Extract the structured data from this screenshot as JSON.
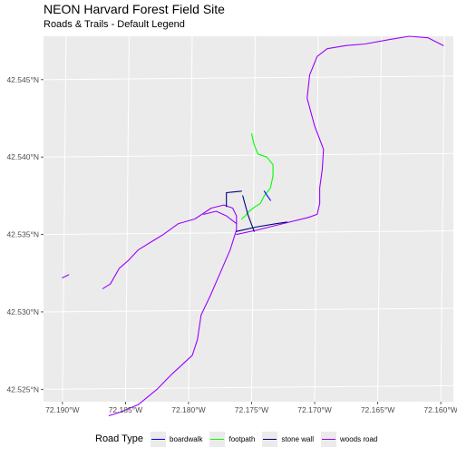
{
  "title": "NEON Harvard Forest Field Site",
  "subtitle": "Roads & Trails - Default Legend",
  "chart_data": {
    "type": "map",
    "x_ticks": [
      "72.190°W",
      "72.185°W",
      "72.180°W",
      "72.175°W",
      "72.170°W",
      "72.165°W",
      "72.160°W"
    ],
    "x_tick_values": [
      -72.19,
      -72.185,
      -72.18,
      -72.175,
      -72.17,
      -72.165,
      -72.16
    ],
    "y_ticks": [
      "42.525°N",
      "42.530°N",
      "42.535°N",
      "42.540°N",
      "42.545°N"
    ],
    "y_tick_values": [
      42.525,
      42.53,
      42.535,
      42.54,
      42.545
    ],
    "xlim": [
      -72.1915,
      -72.159
    ],
    "ylim": [
      42.5242,
      42.5478
    ],
    "legend": {
      "title": "Road Type",
      "placement": "bottom",
      "entries": [
        {
          "label": "boardwalk",
          "color": "#0000ff"
        },
        {
          "label": "footpath",
          "color": "#00ff00"
        },
        {
          "label": "stone wall",
          "color": "#000080"
        },
        {
          "label": "woods road",
          "color": "#9a00ff"
        }
      ]
    },
    "series": [
      {
        "name": "woods road",
        "color": "#9a00ff",
        "lines": [
          [
            [
              -72.19,
              42.5322
            ],
            [
              -72.1895,
              42.5324
            ]
          ],
          [
            [
              -72.1868,
              42.5315
            ],
            [
              -72.1862,
              42.5318
            ],
            [
              -72.1855,
              42.5328
            ],
            [
              -72.1848,
              42.5333
            ],
            [
              -72.184,
              42.534
            ],
            [
              -72.183,
              42.5345
            ],
            [
              -72.182,
              42.535
            ],
            [
              -72.1808,
              42.5357
            ],
            [
              -72.1795,
              42.536
            ],
            [
              -72.1782,
              42.5367
            ],
            [
              -72.1772,
              42.5369
            ],
            [
              -72.1765,
              42.5367
            ],
            [
              -72.1762,
              42.5362
            ],
            [
              -72.1762,
              42.5353
            ],
            [
              -72.1767,
              42.534
            ],
            [
              -72.1775,
              42.5325
            ],
            [
              -72.1783,
              42.531
            ],
            [
              -72.179,
              42.5298
            ],
            [
              -72.1793,
              42.5282
            ],
            [
              -72.1797,
              42.5272
            ],
            [
              -72.1813,
              42.526
            ],
            [
              -72.1825,
              42.525
            ],
            [
              -72.184,
              42.524
            ],
            [
              -72.1855,
              42.5235
            ],
            [
              -72.1863,
              42.5233
            ]
          ],
          [
            [
              -72.1788,
              42.5363
            ],
            [
              -72.1778,
              42.5365
            ],
            [
              -72.177,
              42.5362
            ],
            [
              -72.1762,
              42.5357
            ]
          ],
          [
            [
              -72.1762,
              42.535
            ],
            [
              -72.1745,
              42.5353
            ],
            [
              -72.1725,
              42.5357
            ],
            [
              -72.1705,
              42.5361
            ],
            [
              -72.1698,
              42.5363
            ],
            [
              -72.1696,
              42.537
            ],
            [
              -72.1696,
              42.538
            ],
            [
              -72.1694,
              42.5392
            ],
            [
              -72.1693,
              42.5405
            ],
            [
              -72.17,
              42.542
            ],
            [
              -72.1706,
              42.5438
            ],
            [
              -72.1704,
              42.5453
            ],
            [
              -72.1698,
              42.5465
            ],
            [
              -72.169,
              42.547
            ],
            [
              -72.1675,
              42.5472
            ],
            [
              -72.166,
              42.5473
            ],
            [
              -72.164,
              42.5476
            ],
            [
              -72.1625,
              42.5478
            ],
            [
              -72.161,
              42.5477
            ],
            [
              -72.1598,
              42.5472
            ]
          ]
        ]
      },
      {
        "name": "footpath",
        "color": "#00ff00",
        "lines": [
          [
            [
              -72.175,
              42.5415
            ],
            [
              -72.1748,
              42.5408
            ],
            [
              -72.1745,
              42.5402
            ],
            [
              -72.1738,
              42.54
            ],
            [
              -72.1733,
              42.5395
            ],
            [
              -72.1733,
              42.5388
            ],
            [
              -72.1735,
              42.538
            ],
            [
              -72.174,
              42.5375
            ],
            [
              -72.1743,
              42.537
            ],
            [
              -72.1747,
              42.5368
            ],
            [
              -72.1752,
              42.5365
            ],
            [
              -72.1755,
              42.5362
            ],
            [
              -72.1758,
              42.536
            ]
          ]
        ]
      },
      {
        "name": "stone wall",
        "color": "#000080",
        "lines": [
          [
            [
              -72.177,
              42.5368
            ],
            [
              -72.177,
              42.5377
            ],
            [
              -72.1758,
              42.5378
            ]
          ],
          [
            [
              -72.1757,
              42.5375
            ],
            [
              -72.1753,
              42.5363
            ],
            [
              -72.1748,
              42.5352
            ]
          ],
          [
            [
              -72.1762,
              42.5352
            ],
            [
              -72.1745,
              42.5355
            ],
            [
              -72.173,
              42.5357
            ],
            [
              -72.1722,
              42.5358
            ]
          ]
        ]
      },
      {
        "name": "boardwalk",
        "color": "#0000ff",
        "lines": [
          [
            [
              -72.174,
              42.5378
            ],
            [
              -72.1735,
              42.5372
            ]
          ]
        ]
      }
    ]
  }
}
